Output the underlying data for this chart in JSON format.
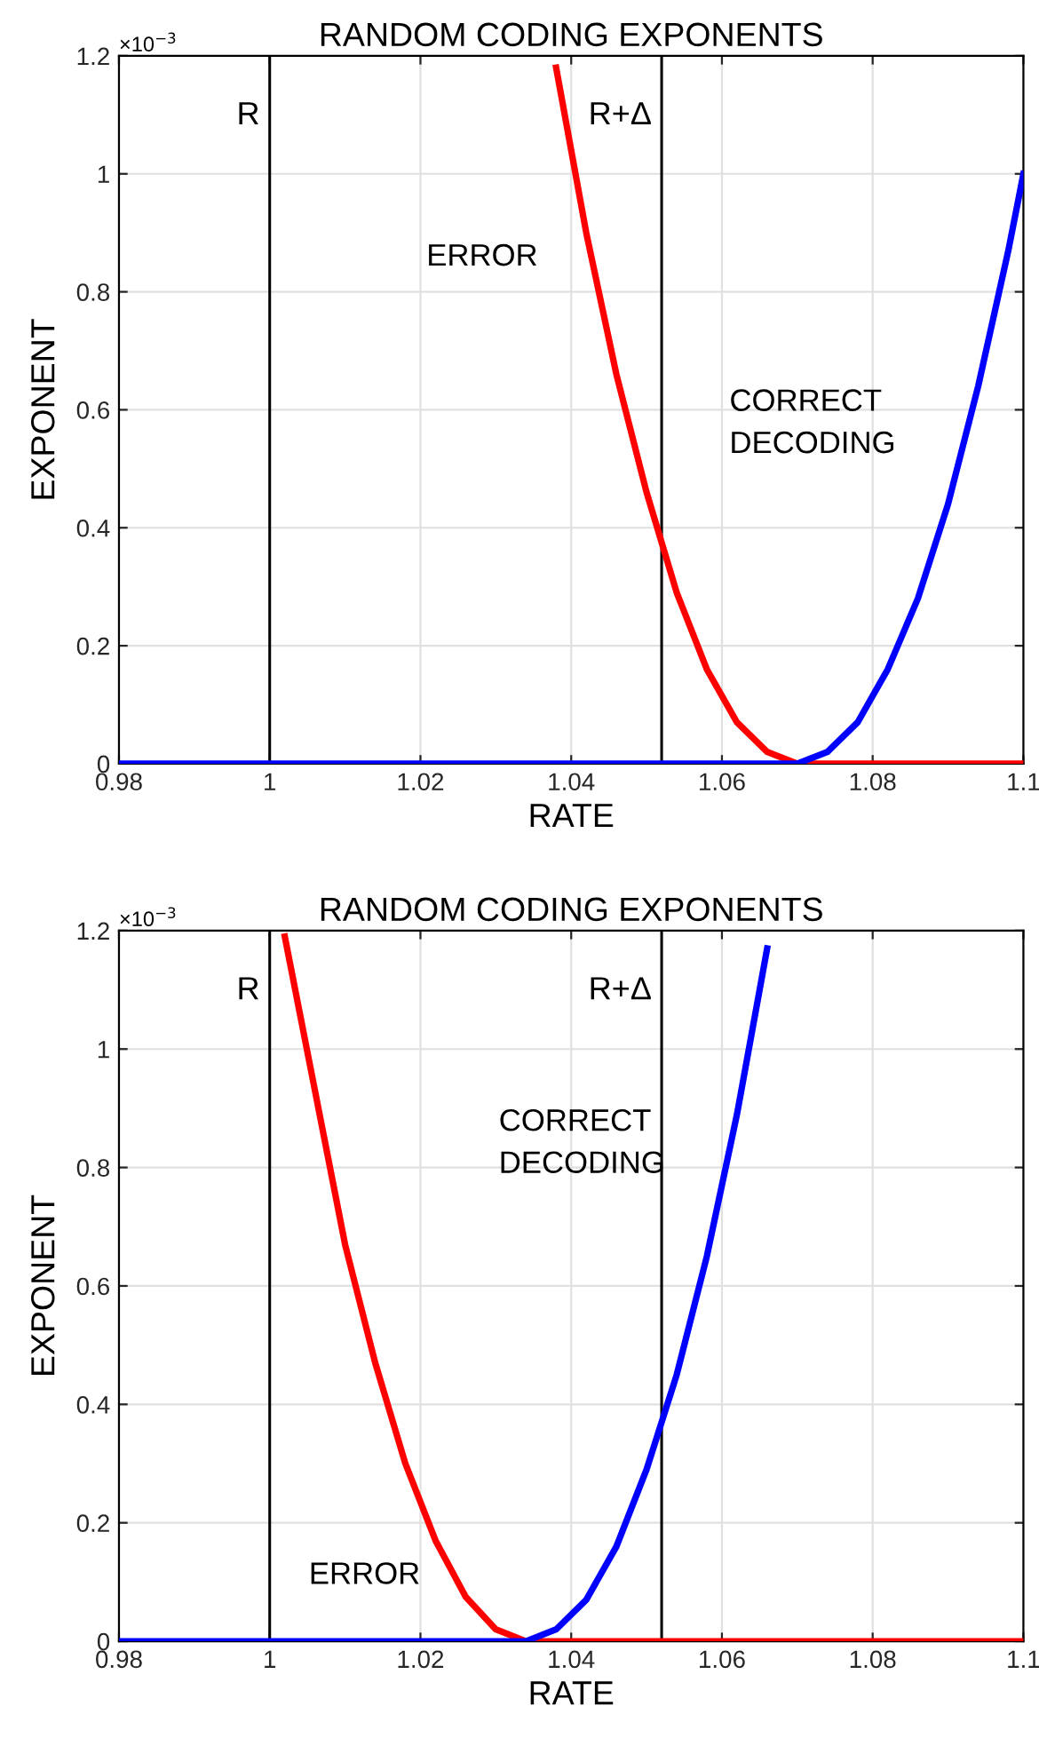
{
  "chart_data": [
    {
      "type": "line",
      "title": "RANDOM CODING EXPONENTS",
      "xlabel": "RATE",
      "ylabel": "EXPONENT",
      "xlim": [
        0.98,
        1.1
      ],
      "xticks": [
        0.98,
        1,
        1.02,
        1.04,
        1.06,
        1.08,
        1.1
      ],
      "ylim": [
        0,
        1.2
      ],
      "yticks": [
        0,
        0.2,
        0.4,
        0.6,
        0.8,
        1,
        1.2
      ],
      "grid": true,
      "series": [
        {
          "color": "#ff0000",
          "x": [
            1.038,
            1.042,
            1.046,
            1.05,
            1.054,
            1.058,
            1.062,
            1.066,
            1.07,
            1.1
          ],
          "values": [
            1.18,
            0.9,
            0.66,
            0.46,
            0.29,
            0.16,
            0.07,
            0.02,
            0,
            0
          ]
        },
        {
          "color": "#0000ff",
          "x": [
            0.98,
            1.07,
            1.074,
            1.078,
            1.082,
            1.086,
            1.09,
            1.094,
            1.098,
            1.1
          ],
          "values": [
            0,
            0,
            0.02,
            0.07,
            0.16,
            0.28,
            0.44,
            0.64,
            0.87,
            1.0
          ]
        }
      ],
      "ref_lines": [
        {
          "axis": "x",
          "value": 1,
          "label": "R",
          "color": "#000000"
        },
        {
          "axis": "x",
          "value": 1.052,
          "label": "R+Δ",
          "color": "#000000"
        }
      ],
      "annotations": [
        "×10$^{−3}$",
        "ERROR",
        "CORRECT\nDECODING"
      ]
    },
    {
      "type": "line",
      "title": "RANDOM CODING EXPONENTS",
      "xlabel": "RATE",
      "ylabel": "EXPONENT",
      "xlim": [
        0.98,
        1.1
      ],
      "xticks": [
        0.98,
        1,
        1.02,
        1.04,
        1.06,
        1.08,
        1.1
      ],
      "ylim": [
        0,
        1.2
      ],
      "yticks": [
        0,
        0.2,
        0.4,
        0.6,
        0.8,
        1,
        1.2
      ],
      "grid": true,
      "series": [
        {
          "color": "#ff0000",
          "x": [
            1.002,
            1.006,
            1.01,
            1.014,
            1.018,
            1.022,
            1.026,
            1.03,
            1.034,
            1.1
          ],
          "values": [
            1.19,
            0.93,
            0.67,
            0.47,
            0.3,
            0.17,
            0.075,
            0.02,
            0,
            0
          ]
        },
        {
          "color": "#0000ff",
          "x": [
            0.98,
            1.034,
            1.038,
            1.042,
            1.046,
            1.05,
            1.054,
            1.058,
            1.062,
            1.066
          ],
          "values": [
            0,
            0,
            0.02,
            0.07,
            0.16,
            0.29,
            0.45,
            0.65,
            0.89,
            1.17
          ]
        }
      ],
      "ref_lines": [
        {
          "axis": "x",
          "value": 1,
          "label": "R",
          "color": "#000000"
        },
        {
          "axis": "x",
          "value": 1.052,
          "label": "R+Δ",
          "color": "#000000"
        }
      ],
      "annotations": [
        "×10$^{−3}$",
        "CORRECT\nDECODING",
        "ERROR"
      ]
    }
  ]
}
